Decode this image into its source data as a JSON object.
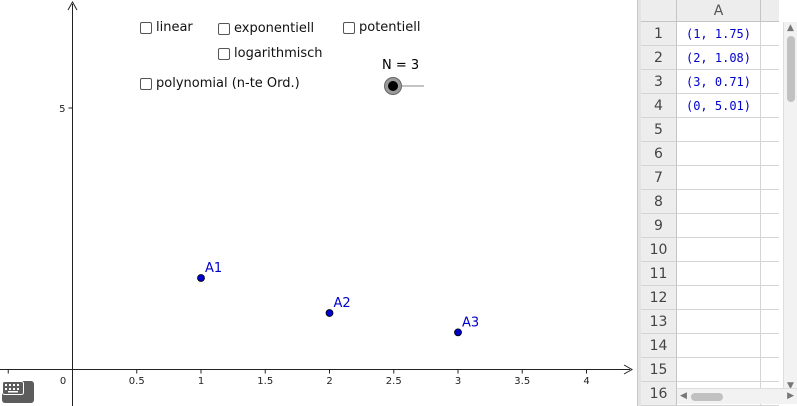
{
  "graphics": {
    "checkboxes": [
      {
        "id": "linear",
        "label": "linear",
        "checked": false
      },
      {
        "id": "exponentiell",
        "label": "exponentiell",
        "checked": false
      },
      {
        "id": "potentiell",
        "label": "potentiell",
        "checked": false
      },
      {
        "id": "logarithmisch",
        "label": "logarithmisch",
        "checked": false
      },
      {
        "id": "polynomial",
        "label": "polynomial (n-te Ord.)",
        "checked": false
      }
    ],
    "slider": {
      "label": "N = 3",
      "value": 3
    },
    "axes": {
      "x_ticks": [
        "0.5",
        "1",
        "1.5",
        "2",
        "2.5",
        "3",
        "3.5",
        "4"
      ],
      "y_ticks": [
        "5"
      ],
      "origin_label": "0"
    },
    "points": [
      {
        "label": "A1",
        "x": 1,
        "y": 1.75
      },
      {
        "label": "A2",
        "x": 2,
        "y": 1.08
      },
      {
        "label": "A3",
        "x": 3,
        "y": 0.71
      }
    ],
    "point_color": "#0000cc",
    "keyboard_icon": "keyboard-icon"
  },
  "spreadsheet": {
    "column_header": "A",
    "rows": [
      {
        "n": "1",
        "a": "(1, 1.75)"
      },
      {
        "n": "2",
        "a": "(2, 1.08)"
      },
      {
        "n": "3",
        "a": "(3, 0.71)"
      },
      {
        "n": "4",
        "a": "(0, 5.01)"
      },
      {
        "n": "5",
        "a": ""
      },
      {
        "n": "6",
        "a": ""
      },
      {
        "n": "7",
        "a": ""
      },
      {
        "n": "8",
        "a": ""
      },
      {
        "n": "9",
        "a": ""
      },
      {
        "n": "10",
        "a": ""
      },
      {
        "n": "11",
        "a": ""
      },
      {
        "n": "12",
        "a": ""
      },
      {
        "n": "13",
        "a": ""
      },
      {
        "n": "14",
        "a": ""
      },
      {
        "n": "15",
        "a": ""
      },
      {
        "n": "16",
        "a": ""
      }
    ],
    "cell_color": "#0000cc"
  }
}
